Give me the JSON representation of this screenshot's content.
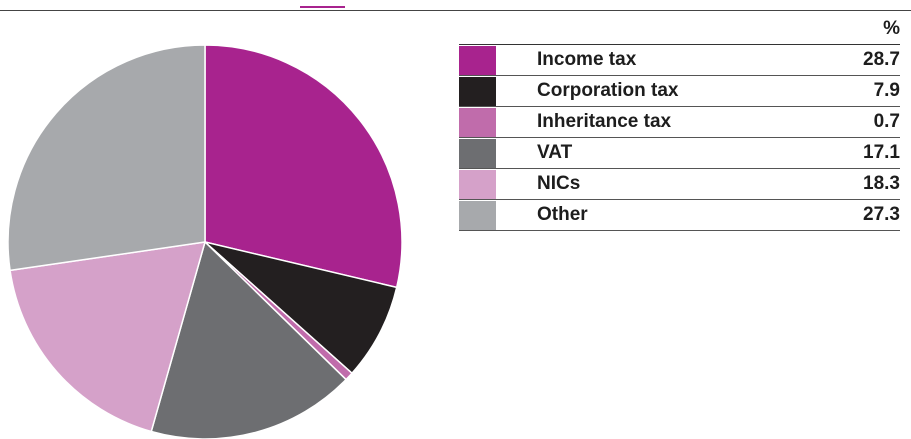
{
  "chart_data": {
    "type": "pie",
    "title": "",
    "unit": "%",
    "categories": [
      "Income tax",
      "Corporation tax",
      "Inheritance tax",
      "VAT",
      "NICs",
      "Other"
    ],
    "values": [
      28.7,
      7.9,
      0.7,
      17.1,
      18.3,
      27.3
    ],
    "value_labels": [
      "28.7",
      "7.9",
      "0.7",
      "17.1",
      "18.3",
      "27.3"
    ],
    "colors": [
      "#a8238e",
      "#231f20",
      "#c06cab",
      "#6d6e71",
      "#d5a1c9",
      "#a7a9ac"
    ],
    "legend_placement": "right"
  }
}
